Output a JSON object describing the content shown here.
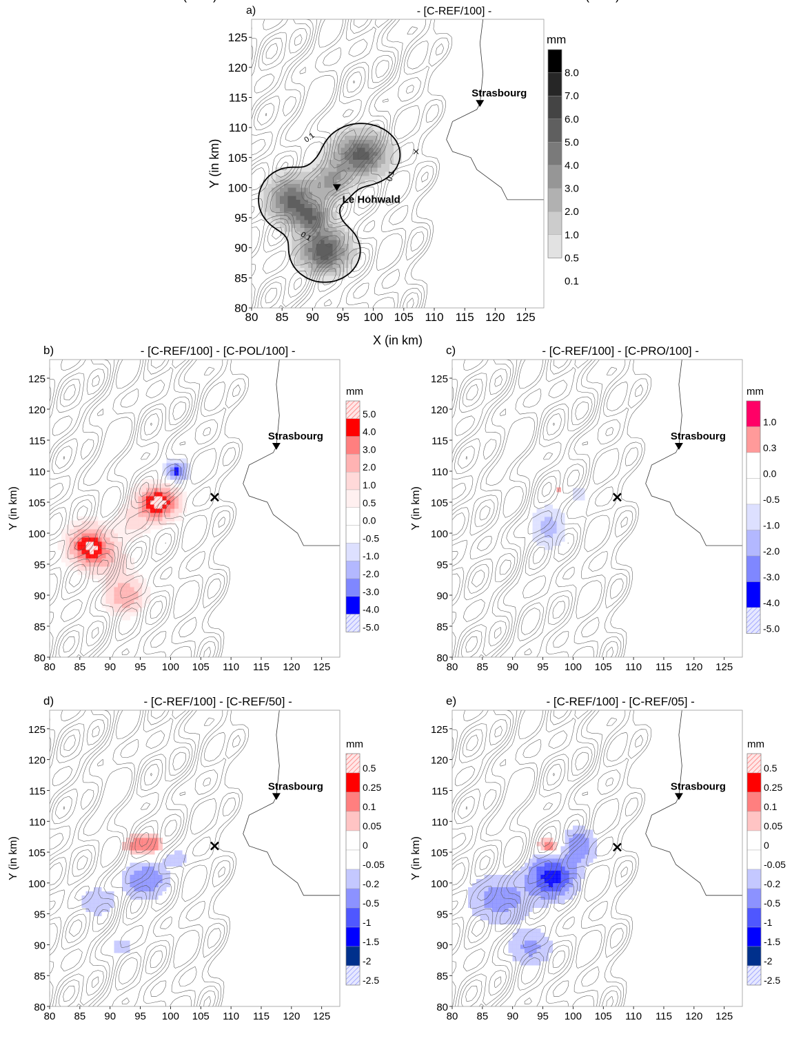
{
  "chart_data": [
    {
      "id": "a",
      "type": "heatmap",
      "panel_label": "a)",
      "title": "- [C-REF/100] -",
      "xlabel": "X (in km)",
      "ylabel": "Y (in km)",
      "xlim": [
        80,
        128
      ],
      "ylim": [
        80,
        128
      ],
      "xticks": [
        80,
        85,
        90,
        95,
        100,
        105,
        110,
        115,
        120,
        125
      ],
      "yticks": [
        80,
        85,
        90,
        95,
        100,
        105,
        110,
        115,
        120,
        125
      ],
      "colorbar": {
        "unit": "mm",
        "labels": [
          "8.0",
          "7.0",
          "6.0",
          "5.0",
          "4.0",
          "3.0",
          "2.0",
          "1.0",
          "0.5",
          "0.1"
        ],
        "colors": [
          "#000000",
          "#262626",
          "#444444",
          "#5f5f5f",
          "#7a7a7a",
          "#969696",
          "#b1b1b1",
          "#cccccc",
          "#e2e2e2",
          "#ffffff"
        ]
      },
      "contour_label": "0.1",
      "locations": [
        {
          "name": "Strasbourg",
          "x": 117.5,
          "y": 114
        },
        {
          "name": "Le Hohwald",
          "x": 94,
          "y": 100
        }
      ],
      "cross": {
        "x": 107,
        "y": 106
      },
      "blobs": [
        {
          "x": 98,
          "y": 105.5,
          "rx": 4.2,
          "ry": 3.4,
          "peak": 5.5
        },
        {
          "x": 86.5,
          "y": 98,
          "rx": 3.6,
          "ry": 3.6,
          "peak": 5.0
        },
        {
          "x": 92,
          "y": 89.5,
          "rx": 3.8,
          "ry": 3.4,
          "peak": 5.8
        },
        {
          "x": 90,
          "y": 95,
          "rx": 2.8,
          "ry": 2.6,
          "peak": 4.0
        },
        {
          "x": 93,
          "y": 101,
          "rx": 3.0,
          "ry": 3.0,
          "peak": 3.0
        }
      ]
    },
    {
      "id": "b",
      "type": "heatmap",
      "panel_label": "b)",
      "title": "- [C-REF/100] - [C-POL/100] -",
      "xlabel": "X (in km)",
      "ylabel": "Y (in km)",
      "xlim": [
        80,
        128
      ],
      "ylim": [
        80,
        128
      ],
      "xticks": [
        80,
        85,
        90,
        95,
        100,
        105,
        110,
        115,
        120,
        125
      ],
      "yticks": [
        80,
        85,
        90,
        95,
        100,
        105,
        110,
        115,
        120,
        125
      ],
      "colorbar": {
        "unit": "mm",
        "labels": [
          "5.0",
          "4.0",
          "3.0",
          "2.0",
          "1.0",
          "0.5",
          "0.0",
          "-0.5",
          "-1.0",
          "-2.0",
          "-3.0",
          "-4.0",
          "-5.0"
        ],
        "colors": [
          "hatch-red",
          "#ff0000",
          "#ff7f7f",
          "#ffb3b3",
          "#ffd9d9",
          "#fff0f0",
          "#ffffff",
          "#ffffff",
          "#dde0ff",
          "#b3b8ff",
          "#7f87ff",
          "#0000ff",
          "hatch-blue"
        ]
      },
      "locations": [
        {
          "name": "Strasbourg",
          "x": 117.5,
          "y": 114
        }
      ],
      "cross": {
        "x": 107.3,
        "y": 105.8
      },
      "blobs": [
        {
          "x": 98,
          "y": 105,
          "rx": 3.2,
          "ry": 2.6,
          "v": 5.5
        },
        {
          "x": 86.5,
          "y": 98,
          "rx": 3.2,
          "ry": 3.0,
          "v": 5.0
        },
        {
          "x": 92.5,
          "y": 90,
          "rx": 3.0,
          "ry": 2.8,
          "v": 3.0
        },
        {
          "x": 90,
          "y": 96,
          "rx": 3.6,
          "ry": 3.0,
          "v": 1.5
        },
        {
          "x": 94,
          "y": 102,
          "rx": 3.0,
          "ry": 2.6,
          "v": 1.2
        },
        {
          "x": 101,
          "y": 110,
          "rx": 2.2,
          "ry": 1.6,
          "v": -4.5
        },
        {
          "x": 93.5,
          "y": 97.5,
          "rx": 1.2,
          "ry": 0.8,
          "v": -0.8
        },
        {
          "x": 99.5,
          "y": 100,
          "rx": 1.2,
          "ry": 0.8,
          "v": -0.7
        }
      ]
    },
    {
      "id": "c",
      "type": "heatmap",
      "panel_label": "c)",
      "title": "- [C-REF/100] - [C-PRO/100] -",
      "xlabel": "X (in km)",
      "ylabel": "Y (in km)",
      "xlim": [
        80,
        128
      ],
      "ylim": [
        80,
        128
      ],
      "xticks": [
        80,
        85,
        90,
        95,
        100,
        105,
        110,
        115,
        120,
        125
      ],
      "yticks": [
        80,
        85,
        90,
        95,
        100,
        105,
        110,
        115,
        120,
        125
      ],
      "colorbar": {
        "unit": "mm",
        "labels": [
          "1.0",
          "0.3",
          "0.0",
          "-0.5",
          "-1.0",
          "-2.0",
          "-3.0",
          "-4.0",
          "-5.0"
        ],
        "colors": [
          "#ff0066",
          "#ff9a9a",
          "#ffffff",
          "#ffffff",
          "#dde0ff",
          "#b3b8ff",
          "#7f87ff",
          "#0000ff",
          "hatch-blue"
        ]
      },
      "locations": [
        {
          "name": "Strasbourg",
          "x": 117.5,
          "y": 114
        }
      ],
      "cross": {
        "x": 107.3,
        "y": 105.8
      },
      "blobs": [
        {
          "x": 96,
          "y": 101,
          "rx": 3.0,
          "ry": 3.6,
          "v": -2.5
        },
        {
          "x": 101,
          "y": 106.5,
          "rx": 2.4,
          "ry": 2.6,
          "v": -1.2
        },
        {
          "x": 89,
          "y": 96.5,
          "rx": 3.2,
          "ry": 2.0,
          "v": -0.8
        },
        {
          "x": 93,
          "y": 88,
          "rx": 1.2,
          "ry": 1.4,
          "v": -0.8
        },
        {
          "x": 97.5,
          "y": 107,
          "rx": 1.1,
          "ry": 0.9,
          "v": 0.6
        }
      ]
    },
    {
      "id": "d",
      "type": "heatmap",
      "panel_label": "d)",
      "title": "- [C-REF/100] - [C-REF/50] -",
      "xlabel": "X (in km)",
      "ylabel": "Y (in km)",
      "xlim": [
        80,
        128
      ],
      "ylim": [
        80,
        128
      ],
      "xticks": [
        80,
        85,
        90,
        95,
        100,
        105,
        110,
        115,
        120,
        125
      ],
      "yticks": [
        80,
        85,
        90,
        95,
        100,
        105,
        110,
        115,
        120,
        125
      ],
      "colorbar": {
        "unit": "mm",
        "labels": [
          "0.5",
          "0.25",
          "0.1",
          "0.05",
          "0",
          "-0.05",
          "-0.2",
          "-0.5",
          "-1",
          "-1.5",
          "-2",
          "-2.5"
        ],
        "colors": [
          "hatch-red",
          "#ff0000",
          "#ff7f7f",
          "#ffc4c4",
          "#ffffff",
          "#ffffff",
          "#c4c8ff",
          "#8c92ff",
          "#4f57ff",
          "#0000ff",
          "#00308c",
          "hatch-blue"
        ]
      },
      "locations": [
        {
          "name": "Strasbourg",
          "x": 117.5,
          "y": 114
        }
      ],
      "cross": {
        "x": 107.3,
        "y": 106
      },
      "blobs": [
        {
          "x": 96,
          "y": 100.5,
          "rx": 3.2,
          "ry": 2.6,
          "v": -0.9
        },
        {
          "x": 88,
          "y": 97,
          "rx": 4.2,
          "ry": 3.2,
          "v": -0.3
        },
        {
          "x": 92,
          "y": 89.5,
          "rx": 3.2,
          "ry": 2.4,
          "v": -0.25
        },
        {
          "x": 101,
          "y": 104,
          "rx": 2.6,
          "ry": 2.0,
          "v": -0.3
        },
        {
          "x": 96,
          "y": 106,
          "rx": 3.4,
          "ry": 1.8,
          "v": 0.2
        },
        {
          "x": 91.5,
          "y": 97.5,
          "rx": 0.9,
          "ry": 0.7,
          "v": 0.08
        },
        {
          "x": 100,
          "y": 102.5,
          "rx": 0.8,
          "ry": 0.6,
          "v": 0.08
        }
      ]
    },
    {
      "id": "e",
      "type": "heatmap",
      "panel_label": "e)",
      "title": "- [C-REF/100] - [C-REF/05] -",
      "xlabel": "X (in km)",
      "ylabel": "Y (in km)",
      "xlim": [
        80,
        128
      ],
      "ylim": [
        80,
        128
      ],
      "xticks": [
        80,
        85,
        90,
        95,
        100,
        105,
        110,
        115,
        120,
        125
      ],
      "yticks": [
        80,
        85,
        90,
        95,
        100,
        105,
        110,
        115,
        120,
        125
      ],
      "colorbar": {
        "unit": "mm",
        "labels": [
          "0.5",
          "0.25",
          "0.1",
          "0.05",
          "0",
          "-0.05",
          "-0.2",
          "-0.5",
          "-1",
          "-1.5",
          "-2",
          "-2.5"
        ],
        "colors": [
          "hatch-red",
          "#ff0000",
          "#ff7f7f",
          "#ffc4c4",
          "#ffffff",
          "#ffffff",
          "#c4c8ff",
          "#8c92ff",
          "#4f57ff",
          "#0000ff",
          "#00308c",
          "hatch-blue"
        ]
      },
      "locations": [
        {
          "name": "Strasbourg",
          "x": 117.5,
          "y": 114
        }
      ],
      "cross": {
        "x": 107.3,
        "y": 105.8
      },
      "blobs": [
        {
          "x": 96.5,
          "y": 101,
          "rx": 3.4,
          "ry": 3.0,
          "v": -1.8
        },
        {
          "x": 88,
          "y": 97.5,
          "rx": 5.0,
          "ry": 3.6,
          "v": -0.7
        },
        {
          "x": 93,
          "y": 89.5,
          "rx": 3.4,
          "ry": 2.8,
          "v": -0.6
        },
        {
          "x": 101,
          "y": 106,
          "rx": 2.6,
          "ry": 2.8,
          "v": -0.8
        },
        {
          "x": 96.5,
          "y": 105.5,
          "rx": 2.6,
          "ry": 1.6,
          "v": 0.3
        },
        {
          "x": 100,
          "y": 96.5,
          "rx": 0.8,
          "ry": 0.5,
          "v": 0.08
        }
      ]
    }
  ]
}
